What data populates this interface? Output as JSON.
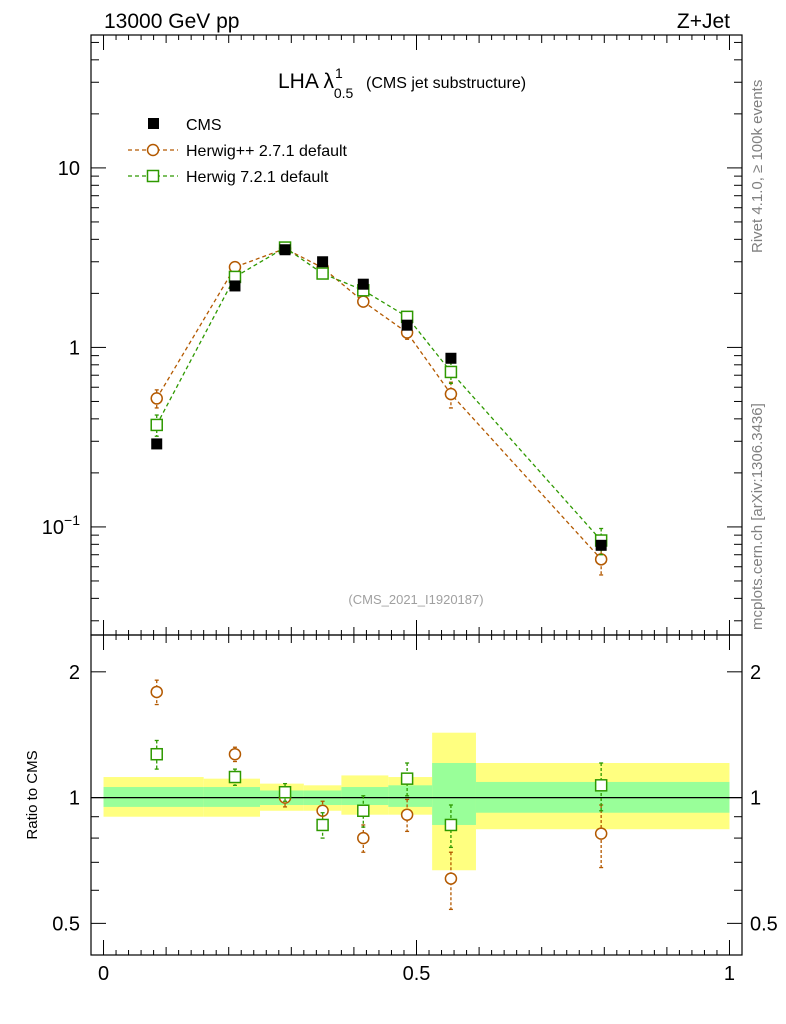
{
  "header": {
    "left": "13000 GeV pp",
    "right": "Z+Jet"
  },
  "side_text": {
    "top": "Rivet 4.1.0, ≥ 100k events",
    "bottom": "mcplots.cern.ch [arXiv:1306.3436]"
  },
  "chart_data": [
    {
      "type": "scatter",
      "title": "LHA λ",
      "title_sup": "1",
      "title_sub": "0.5",
      "subtitle": "(CMS jet substructure)",
      "watermark": "(CMS_2021_I1920187)",
      "yscale": "log",
      "ylim": [
        0.025,
        55
      ],
      "xlim": [
        -0.02,
        1.02
      ],
      "ytick_labels": [
        {
          "value": 0.1,
          "label": "10",
          "sup": "−1"
        },
        {
          "value": 1,
          "label": "1",
          "sup": ""
        },
        {
          "value": 10,
          "label": "10",
          "sup": ""
        }
      ],
      "legend_position": "top-left",
      "series": [
        {
          "name": "CMS",
          "color": "#000000",
          "marker": "filled-square",
          "line": "none",
          "x": [
            0.085,
            0.21,
            0.29,
            0.35,
            0.415,
            0.485,
            0.555,
            0.795
          ],
          "y": [
            0.29,
            2.2,
            3.5,
            3.0,
            2.25,
            1.33,
            0.87,
            0.079
          ]
        },
        {
          "name": "Herwig++ 2.7.1 default",
          "color": "#b35900",
          "marker": "open-circle",
          "line": "dashed",
          "x": [
            0.085,
            0.21,
            0.29,
            0.35,
            0.415,
            0.485,
            0.555,
            0.795
          ],
          "y": [
            0.52,
            2.8,
            3.55,
            2.78,
            1.8,
            1.21,
            0.55,
            0.066
          ],
          "yerr": [
            0.06,
            0.1,
            0.12,
            0.1,
            0.09,
            0.1,
            0.09,
            0.012
          ]
        },
        {
          "name": "Herwig 7.2.1 default",
          "color": "#2e9900",
          "marker": "open-square",
          "line": "dashed",
          "x": [
            0.085,
            0.21,
            0.29,
            0.35,
            0.415,
            0.485,
            0.555,
            0.795
          ],
          "y": [
            0.37,
            2.47,
            3.6,
            2.58,
            2.08,
            1.48,
            0.73,
            0.084
          ],
          "yerr": [
            0.05,
            0.1,
            0.12,
            0.1,
            0.1,
            0.1,
            0.1,
            0.014
          ]
        }
      ]
    },
    {
      "type": "scatter",
      "ylabel": "Ratio to CMS",
      "yscale": "log",
      "ylim": [
        0.42,
        2.45
      ],
      "xlim": [
        -0.02,
        1.02
      ],
      "ytick_labels": [
        {
          "value": 0.5,
          "label": "0.5"
        },
        {
          "value": 1,
          "label": "1"
        },
        {
          "value": 2,
          "label": "2"
        }
      ],
      "xtick_labels": [
        {
          "value": 0,
          "label": "0"
        },
        {
          "value": 0.5,
          "label": "0.5"
        },
        {
          "value": 1,
          "label": "1"
        }
      ],
      "bands": [
        {
          "x0": 0.0,
          "x1": 0.16,
          "stat_lo": 0.95,
          "stat_hi": 1.06,
          "tot_lo": 0.9,
          "tot_hi": 1.12
        },
        {
          "x0": 0.16,
          "x1": 0.25,
          "stat_lo": 0.95,
          "stat_hi": 1.06,
          "tot_lo": 0.9,
          "tot_hi": 1.11
        },
        {
          "x0": 0.25,
          "x1": 0.32,
          "stat_lo": 0.96,
          "stat_hi": 1.04,
          "tot_lo": 0.93,
          "tot_hi": 1.08
        },
        {
          "x0": 0.32,
          "x1": 0.38,
          "stat_lo": 0.96,
          "stat_hi": 1.04,
          "tot_lo": 0.93,
          "tot_hi": 1.07
        },
        {
          "x0": 0.38,
          "x1": 0.455,
          "stat_lo": 0.96,
          "stat_hi": 1.06,
          "tot_lo": 0.91,
          "tot_hi": 1.13
        },
        {
          "x0": 0.455,
          "x1": 0.525,
          "stat_lo": 0.95,
          "stat_hi": 1.07,
          "tot_lo": 0.91,
          "tot_hi": 1.12
        },
        {
          "x0": 0.525,
          "x1": 0.595,
          "stat_lo": 0.86,
          "stat_hi": 1.21,
          "tot_lo": 0.67,
          "tot_hi": 1.43
        },
        {
          "x0": 0.595,
          "x1": 1.0,
          "stat_lo": 0.92,
          "stat_hi": 1.09,
          "tot_lo": 0.84,
          "tot_hi": 1.21
        }
      ],
      "series": [
        {
          "name": "Herwig++ 2.7.1 default",
          "color": "#b35900",
          "marker": "open-circle",
          "x": [
            0.085,
            0.21,
            0.29,
            0.35,
            0.415,
            0.485,
            0.555,
            0.795
          ],
          "y": [
            1.79,
            1.27,
            1.0,
            0.93,
            0.8,
            0.91,
            0.64,
            0.82
          ],
          "yerr": [
            0.12,
            0.05,
            0.05,
            0.05,
            0.06,
            0.08,
            0.1,
            0.14
          ]
        },
        {
          "name": "Herwig 7.2.1 default",
          "color": "#2e9900",
          "marker": "open-square",
          "x": [
            0.085,
            0.21,
            0.29,
            0.35,
            0.415,
            0.485,
            0.555,
            0.795
          ],
          "y": [
            1.27,
            1.12,
            1.03,
            0.86,
            0.93,
            1.11,
            0.86,
            1.07
          ],
          "yerr": [
            0.1,
            0.05,
            0.05,
            0.06,
            0.08,
            0.1,
            0.1,
            0.14
          ]
        }
      ]
    }
  ]
}
